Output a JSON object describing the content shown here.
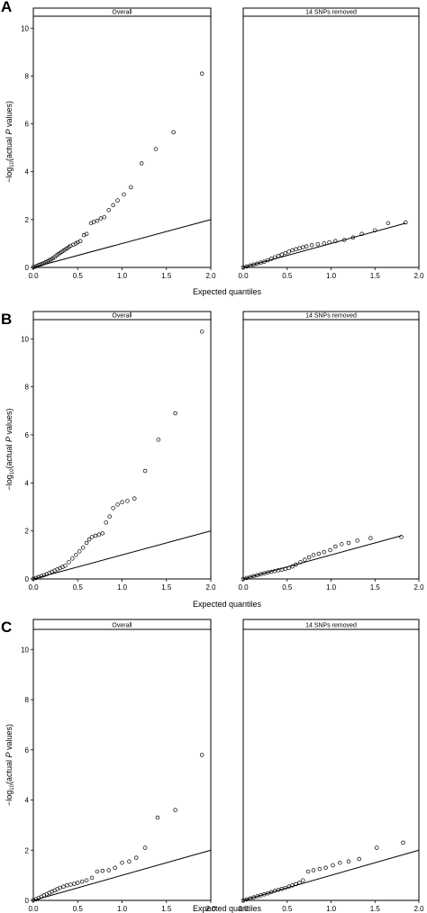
{
  "figure": {
    "ylabel_prefix": "−log",
    "ylabel_sub": "10",
    "ylabel_mid": "(actual ",
    "ylabel_italic": "P",
    "ylabel_suffix": " values)",
    "xlabel": "Expected quantiles"
  },
  "style": {
    "point_stroke": "#000000",
    "line_color": "#000000",
    "strip_fill": "#ffffff"
  },
  "chart_data": [
    {
      "panel": "A",
      "strip": "Overall",
      "type": "scatter",
      "xlim": [
        0,
        2
      ],
      "ylim": [
        0,
        10.5
      ],
      "xticks": [
        "0.0",
        "0.5",
        "1.0",
        "1.5",
        "2.0"
      ],
      "yticks": [
        "0",
        "2",
        "4",
        "6",
        "8",
        "10"
      ],
      "reference_line": [
        [
          0,
          0
        ],
        [
          2,
          2
        ]
      ],
      "points": [
        [
          0.0,
          0.01
        ],
        [
          0.02,
          0.03
        ],
        [
          0.04,
          0.06
        ],
        [
          0.06,
          0.1
        ],
        [
          0.08,
          0.12
        ],
        [
          0.1,
          0.15
        ],
        [
          0.12,
          0.18
        ],
        [
          0.14,
          0.22
        ],
        [
          0.16,
          0.26
        ],
        [
          0.18,
          0.3
        ],
        [
          0.2,
          0.33
        ],
        [
          0.22,
          0.38
        ],
        [
          0.24,
          0.43
        ],
        [
          0.26,
          0.5
        ],
        [
          0.28,
          0.55
        ],
        [
          0.3,
          0.6
        ],
        [
          0.32,
          0.65
        ],
        [
          0.34,
          0.7
        ],
        [
          0.36,
          0.75
        ],
        [
          0.38,
          0.8
        ],
        [
          0.4,
          0.85
        ],
        [
          0.42,
          0.9
        ],
        [
          0.45,
          0.95
        ],
        [
          0.48,
          1.0
        ],
        [
          0.5,
          1.05
        ],
        [
          0.53,
          1.1
        ],
        [
          0.57,
          1.35
        ],
        [
          0.6,
          1.4
        ],
        [
          0.65,
          1.85
        ],
        [
          0.68,
          1.9
        ],
        [
          0.72,
          1.95
        ],
        [
          0.76,
          2.05
        ],
        [
          0.8,
          2.1
        ],
        [
          0.85,
          2.4
        ],
        [
          0.9,
          2.6
        ],
        [
          0.95,
          2.8
        ],
        [
          1.02,
          3.05
        ],
        [
          1.1,
          3.35
        ],
        [
          1.22,
          4.35
        ],
        [
          1.38,
          4.95
        ],
        [
          1.58,
          5.65
        ],
        [
          1.9,
          8.1
        ]
      ]
    },
    {
      "panel": "A",
      "strip": "14 SNPs removed",
      "type": "scatter",
      "xlim": [
        0,
        2
      ],
      "ylim": [
        0,
        10.5
      ],
      "xticks": [
        "0.0",
        "0.5",
        "1.0",
        "1.5",
        "2.0"
      ],
      "yticks": [],
      "reference_line": [
        [
          0,
          0
        ],
        [
          1.85,
          1.85
        ]
      ],
      "points": [
        [
          0.0,
          0.0
        ],
        [
          0.04,
          0.04
        ],
        [
          0.08,
          0.08
        ],
        [
          0.12,
          0.12
        ],
        [
          0.16,
          0.16
        ],
        [
          0.2,
          0.2
        ],
        [
          0.24,
          0.24
        ],
        [
          0.28,
          0.3
        ],
        [
          0.32,
          0.36
        ],
        [
          0.36,
          0.42
        ],
        [
          0.4,
          0.48
        ],
        [
          0.44,
          0.54
        ],
        [
          0.48,
          0.6
        ],
        [
          0.52,
          0.66
        ],
        [
          0.56,
          0.72
        ],
        [
          0.6,
          0.76
        ],
        [
          0.64,
          0.8
        ],
        [
          0.68,
          0.84
        ],
        [
          0.72,
          0.88
        ],
        [
          0.78,
          0.93
        ],
        [
          0.85,
          0.97
        ],
        [
          0.92,
          1.0
        ],
        [
          0.98,
          1.05
        ],
        [
          1.05,
          1.1
        ],
        [
          1.15,
          1.15
        ],
        [
          1.25,
          1.25
        ],
        [
          1.35,
          1.4
        ],
        [
          1.5,
          1.55
        ],
        [
          1.65,
          1.85
        ],
        [
          1.85,
          1.88
        ]
      ]
    },
    {
      "panel": "B",
      "strip": "Overall",
      "type": "scatter",
      "xlim": [
        0,
        2
      ],
      "ylim": [
        0,
        10.8
      ],
      "xticks": [
        "0.0",
        "0.5",
        "1.0",
        "1.5",
        "2.0"
      ],
      "yticks": [
        "0",
        "2",
        "4",
        "6",
        "8",
        "10"
      ],
      "reference_line": [
        [
          0,
          0
        ],
        [
          2,
          2
        ]
      ],
      "points": [
        [
          0.0,
          0.01
        ],
        [
          0.03,
          0.04
        ],
        [
          0.06,
          0.08
        ],
        [
          0.09,
          0.12
        ],
        [
          0.12,
          0.16
        ],
        [
          0.15,
          0.2
        ],
        [
          0.18,
          0.25
        ],
        [
          0.21,
          0.3
        ],
        [
          0.24,
          0.35
        ],
        [
          0.27,
          0.4
        ],
        [
          0.3,
          0.45
        ],
        [
          0.33,
          0.5
        ],
        [
          0.36,
          0.55
        ],
        [
          0.4,
          0.7
        ],
        [
          0.44,
          0.85
        ],
        [
          0.48,
          1.0
        ],
        [
          0.52,
          1.15
        ],
        [
          0.56,
          1.3
        ],
        [
          0.6,
          1.5
        ],
        [
          0.63,
          1.65
        ],
        [
          0.66,
          1.75
        ],
        [
          0.7,
          1.8
        ],
        [
          0.74,
          1.85
        ],
        [
          0.78,
          1.9
        ],
        [
          0.82,
          2.35
        ],
        [
          0.86,
          2.6
        ],
        [
          0.9,
          2.95
        ],
        [
          0.95,
          3.1
        ],
        [
          1.0,
          3.2
        ],
        [
          1.06,
          3.25
        ],
        [
          1.14,
          3.35
        ],
        [
          1.26,
          4.5
        ],
        [
          1.41,
          5.8
        ],
        [
          1.6,
          6.9
        ],
        [
          1.9,
          10.3
        ]
      ]
    },
    {
      "panel": "B",
      "strip": "14 SNPs removed",
      "type": "scatter",
      "xlim": [
        0,
        2
      ],
      "ylim": [
        0,
        10.8
      ],
      "xticks": [
        "0.0",
        "0.5",
        "1.0",
        "1.5",
        "2.0"
      ],
      "yticks": [],
      "reference_line": [
        [
          0,
          0
        ],
        [
          1.8,
          1.8
        ]
      ],
      "points": [
        [
          0.0,
          0.0
        ],
        [
          0.04,
          0.04
        ],
        [
          0.08,
          0.08
        ],
        [
          0.12,
          0.12
        ],
        [
          0.16,
          0.16
        ],
        [
          0.2,
          0.2
        ],
        [
          0.24,
          0.24
        ],
        [
          0.28,
          0.27
        ],
        [
          0.32,
          0.3
        ],
        [
          0.36,
          0.33
        ],
        [
          0.4,
          0.36
        ],
        [
          0.44,
          0.39
        ],
        [
          0.48,
          0.42
        ],
        [
          0.52,
          0.46
        ],
        [
          0.56,
          0.52
        ],
        [
          0.6,
          0.6
        ],
        [
          0.65,
          0.7
        ],
        [
          0.7,
          0.8
        ],
        [
          0.75,
          0.9
        ],
        [
          0.8,
          1.0
        ],
        [
          0.86,
          1.05
        ],
        [
          0.92,
          1.12
        ],
        [
          0.99,
          1.2
        ],
        [
          1.05,
          1.35
        ],
        [
          1.12,
          1.45
        ],
        [
          1.2,
          1.5
        ],
        [
          1.3,
          1.6
        ],
        [
          1.45,
          1.7
        ],
        [
          1.8,
          1.75
        ]
      ]
    },
    {
      "panel": "C",
      "strip": "Overall",
      "type": "scatter",
      "xlim": [
        0,
        2
      ],
      "ylim": [
        0,
        10.8
      ],
      "xticks": [
        "0.0",
        "0.5",
        "1.0",
        "1.5",
        "2.0"
      ],
      "yticks": [
        "0",
        "2",
        "4",
        "6",
        "8",
        "10"
      ],
      "reference_line": [
        [
          0,
          0
        ],
        [
          2,
          2
        ]
      ],
      "points": [
        [
          0.0,
          0.01
        ],
        [
          0.03,
          0.05
        ],
        [
          0.06,
          0.1
        ],
        [
          0.09,
          0.15
        ],
        [
          0.12,
          0.2
        ],
        [
          0.15,
          0.25
        ],
        [
          0.18,
          0.3
        ],
        [
          0.21,
          0.35
        ],
        [
          0.24,
          0.4
        ],
        [
          0.27,
          0.45
        ],
        [
          0.3,
          0.5
        ],
        [
          0.34,
          0.55
        ],
        [
          0.38,
          0.6
        ],
        [
          0.42,
          0.63
        ],
        [
          0.46,
          0.66
        ],
        [
          0.5,
          0.7
        ],
        [
          0.55,
          0.75
        ],
        [
          0.6,
          0.8
        ],
        [
          0.66,
          0.9
        ],
        [
          0.72,
          1.15
        ],
        [
          0.78,
          1.18
        ],
        [
          0.85,
          1.2
        ],
        [
          0.92,
          1.3
        ],
        [
          1.0,
          1.5
        ],
        [
          1.08,
          1.55
        ],
        [
          1.16,
          1.7
        ],
        [
          1.26,
          2.1
        ],
        [
          1.4,
          3.3
        ],
        [
          1.6,
          3.6
        ],
        [
          1.9,
          5.8
        ]
      ]
    },
    {
      "panel": "C",
      "strip": "14 SNPs removed",
      "type": "scatter",
      "xlim": [
        0,
        2
      ],
      "ylim": [
        0,
        10.8
      ],
      "xticks": [
        "0.0",
        "0.5",
        "1.0",
        "1.5",
        "2.0"
      ],
      "yticks": [],
      "reference_line": [
        [
          0,
          0
        ],
        [
          2,
          2
        ]
      ],
      "points": [
        [
          0.0,
          0.0
        ],
        [
          0.04,
          0.04
        ],
        [
          0.08,
          0.08
        ],
        [
          0.12,
          0.12
        ],
        [
          0.16,
          0.16
        ],
        [
          0.2,
          0.2
        ],
        [
          0.24,
          0.24
        ],
        [
          0.28,
          0.28
        ],
        [
          0.32,
          0.33
        ],
        [
          0.36,
          0.38
        ],
        [
          0.4,
          0.42
        ],
        [
          0.44,
          0.46
        ],
        [
          0.48,
          0.5
        ],
        [
          0.52,
          0.55
        ],
        [
          0.56,
          0.6
        ],
        [
          0.6,
          0.65
        ],
        [
          0.64,
          0.7
        ],
        [
          0.68,
          0.8
        ],
        [
          0.74,
          1.15
        ],
        [
          0.8,
          1.2
        ],
        [
          0.87,
          1.25
        ],
        [
          0.94,
          1.3
        ],
        [
          1.02,
          1.4
        ],
        [
          1.1,
          1.5
        ],
        [
          1.2,
          1.55
        ],
        [
          1.32,
          1.65
        ],
        [
          1.52,
          2.1
        ],
        [
          1.82,
          2.3
        ]
      ]
    }
  ],
  "panel_labels": [
    "A",
    "B",
    "C"
  ]
}
